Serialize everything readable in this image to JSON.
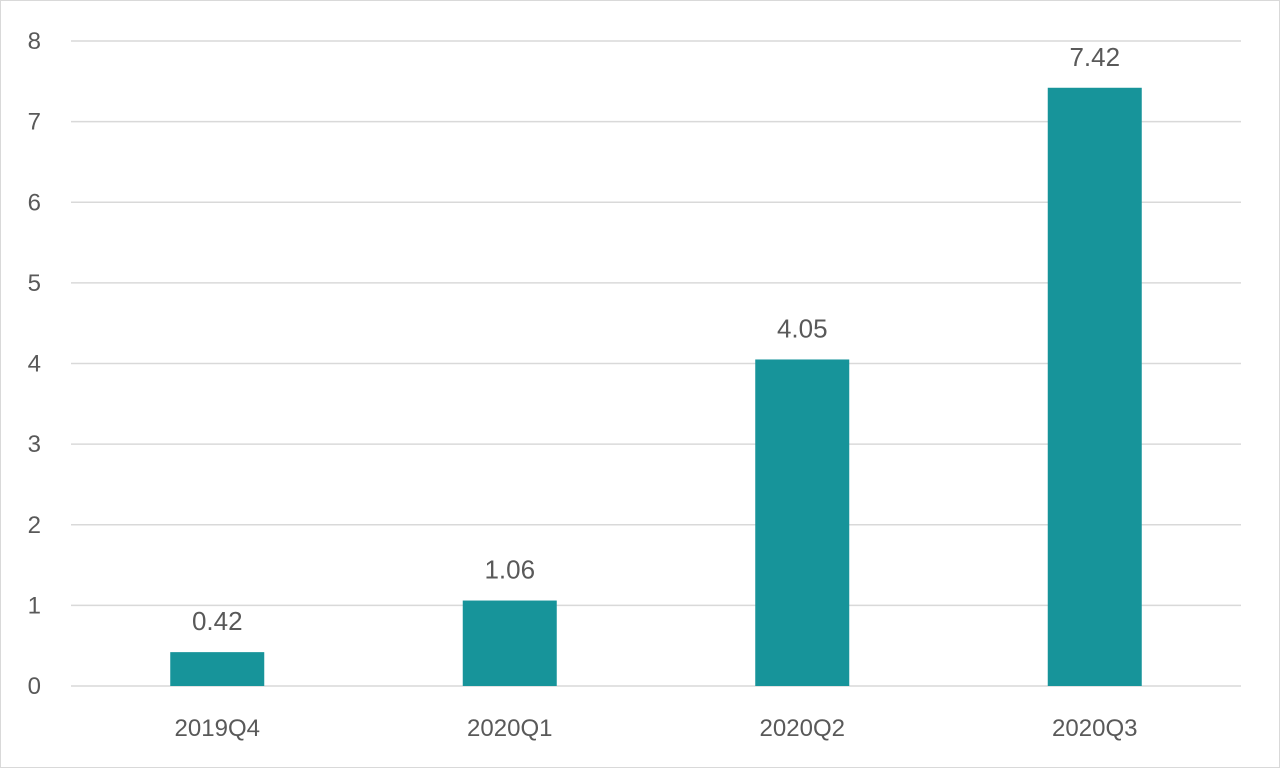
{
  "chart_data": {
    "type": "bar",
    "categories": [
      "2019Q4",
      "2020Q1",
      "2020Q2",
      "2020Q3"
    ],
    "values": [
      0.42,
      1.06,
      4.05,
      7.42
    ],
    "data_labels": [
      "0.42",
      "1.06",
      "4.05",
      "7.42"
    ],
    "title": "",
    "xlabel": "",
    "ylabel": "",
    "ylim": [
      0,
      8
    ],
    "yticks": [
      0,
      1,
      2,
      3,
      4,
      5,
      6,
      7,
      8
    ],
    "grid": true,
    "legend": "none",
    "bar_color": "#17949a"
  }
}
